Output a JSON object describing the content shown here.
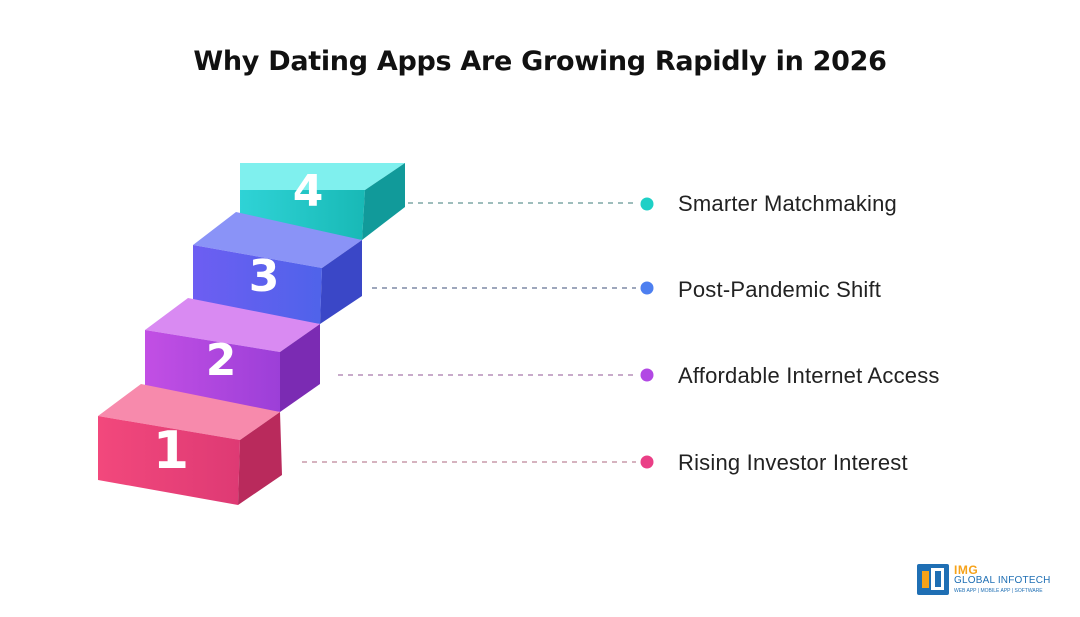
{
  "title": "Why Dating Apps Are Growing Rapidly in 2026",
  "steps": [
    {
      "number": "4",
      "label": "Smarter Matchmaking",
      "color": "#1ec9c4"
    },
    {
      "number": "3",
      "label": "Post-Pandemic Shift",
      "color": "#5a6ef0"
    },
    {
      "number": "2",
      "label": "Affordable Internet Access",
      "color": "#b24de0"
    },
    {
      "number": "1",
      "label": "Rising Investor Interest",
      "color": "#e9437e"
    }
  ],
  "logo": {
    "line1": "IMG",
    "line2": "GLOBAL INFOTECH",
    "line3": "WEB APP | MOBILE APP | SOFTWARE"
  }
}
